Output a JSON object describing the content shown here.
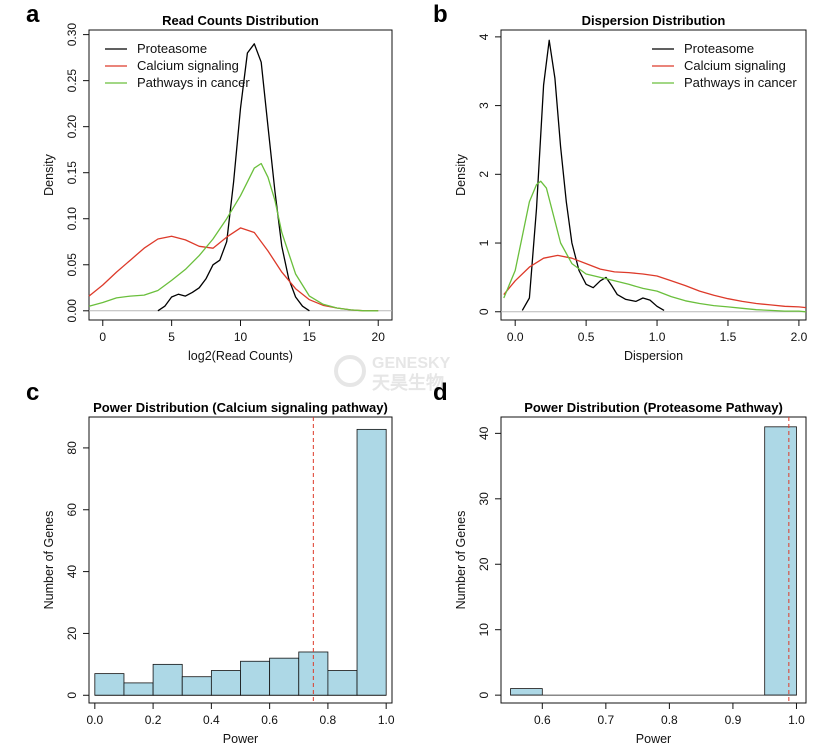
{
  "watermark": {
    "line1": "GENESKY",
    "line2": "天昊生物"
  },
  "chart_data": [
    {
      "panel": "a",
      "type": "line",
      "title": "Read Counts Distribution",
      "xlabel": "log2(Read Counts)",
      "ylabel": "Density",
      "xlim": [
        -1,
        21
      ],
      "ylim": [
        -0.01,
        0.305
      ],
      "xticks": [
        0,
        5,
        10,
        15,
        20
      ],
      "yticks": [
        0.0,
        0.05,
        0.1,
        0.15,
        0.2,
        0.25,
        0.3
      ],
      "ytick_labels": [
        "0.00",
        "0.05",
        "0.10",
        "0.15",
        "0.20",
        "0.25",
        "0.30"
      ],
      "baseline": 0,
      "grid": false,
      "legend": "top-left",
      "series": [
        {
          "name": "Proteasome",
          "color": "#000000",
          "x": [
            4,
            4.5,
            5,
            5.5,
            6,
            6.5,
            7,
            7.5,
            8,
            8.5,
            9,
            9.5,
            10,
            10.5,
            11,
            11.5,
            12,
            12.5,
            13,
            13.5,
            14,
            14.5,
            15
          ],
          "y": [
            0.0,
            0.005,
            0.015,
            0.018,
            0.016,
            0.02,
            0.025,
            0.035,
            0.05,
            0.055,
            0.075,
            0.14,
            0.22,
            0.28,
            0.29,
            0.27,
            0.2,
            0.13,
            0.07,
            0.035,
            0.015,
            0.005,
            0.0
          ]
        },
        {
          "name": "Calcium signaling",
          "color": "#dd3a2a",
          "x": [
            -1,
            0,
            1,
            2,
            3,
            4,
            5,
            6,
            7,
            8,
            9,
            10,
            11,
            12,
            13,
            14,
            15,
            16,
            17,
            18,
            19,
            20
          ],
          "y": [
            0.016,
            0.028,
            0.042,
            0.055,
            0.068,
            0.078,
            0.081,
            0.077,
            0.07,
            0.068,
            0.08,
            0.09,
            0.085,
            0.065,
            0.042,
            0.024,
            0.012,
            0.006,
            0.003,
            0.001,
            0.0,
            0.0
          ]
        },
        {
          "name": "Pathways in cancer",
          "color": "#6abf3c",
          "x": [
            -1,
            0,
            1,
            2,
            3,
            4,
            5,
            6,
            7,
            8,
            9,
            10,
            10.5,
            11,
            11.5,
            12,
            12.5,
            13,
            14,
            15,
            16,
            17,
            18,
            19,
            20
          ],
          "y": [
            0.005,
            0.009,
            0.014,
            0.016,
            0.017,
            0.022,
            0.033,
            0.045,
            0.06,
            0.078,
            0.1,
            0.125,
            0.14,
            0.155,
            0.16,
            0.145,
            0.12,
            0.085,
            0.04,
            0.016,
            0.007,
            0.003,
            0.001,
            0.0,
            0.0
          ]
        }
      ]
    },
    {
      "panel": "b",
      "type": "line",
      "title": "Dispersion Distribution",
      "xlabel": "Dispersion",
      "ylabel": "Density",
      "xlim": [
        -0.1,
        2.05
      ],
      "ylim": [
        -0.12,
        4.1
      ],
      "xticks": [
        0.0,
        0.5,
        1.0,
        1.5,
        2.0
      ],
      "xtick_labels": [
        "0.0",
        "0.5",
        "1.0",
        "1.5",
        "2.0"
      ],
      "yticks": [
        0,
        1,
        2,
        3,
        4
      ],
      "baseline": 0,
      "grid": false,
      "legend": "top-right",
      "series": [
        {
          "name": "Proteasome",
          "color": "#000000",
          "x": [
            0.05,
            0.1,
            0.15,
            0.2,
            0.24,
            0.28,
            0.32,
            0.36,
            0.4,
            0.45,
            0.5,
            0.55,
            0.6,
            0.64,
            0.68,
            0.72,
            0.78,
            0.85,
            0.9,
            0.95,
            1.0,
            1.05
          ],
          "y": [
            0.02,
            0.2,
            1.5,
            3.3,
            3.95,
            3.4,
            2.4,
            1.6,
            1.0,
            0.6,
            0.4,
            0.35,
            0.45,
            0.5,
            0.38,
            0.25,
            0.18,
            0.15,
            0.2,
            0.17,
            0.08,
            0.02
          ]
        },
        {
          "name": "Calcium signaling",
          "color": "#dd3a2a",
          "x": [
            -0.08,
            0.0,
            0.1,
            0.2,
            0.3,
            0.4,
            0.5,
            0.6,
            0.7,
            0.8,
            0.9,
            1.0,
            1.1,
            1.2,
            1.3,
            1.4,
            1.5,
            1.6,
            1.7,
            1.8,
            1.9,
            2.0,
            2.05
          ],
          "y": [
            0.25,
            0.45,
            0.65,
            0.78,
            0.82,
            0.78,
            0.7,
            0.62,
            0.58,
            0.57,
            0.55,
            0.52,
            0.45,
            0.38,
            0.3,
            0.24,
            0.19,
            0.15,
            0.12,
            0.1,
            0.08,
            0.07,
            0.06
          ]
        },
        {
          "name": "Pathways in cancer",
          "color": "#6abf3c",
          "x": [
            -0.08,
            0.0,
            0.05,
            0.1,
            0.15,
            0.18,
            0.22,
            0.27,
            0.32,
            0.4,
            0.5,
            0.6,
            0.7,
            0.8,
            0.9,
            1.0,
            1.1,
            1.2,
            1.3,
            1.4,
            1.5,
            1.6,
            1.7,
            1.8,
            1.9,
            2.0,
            2.05
          ],
          "y": [
            0.2,
            0.6,
            1.1,
            1.6,
            1.85,
            1.9,
            1.8,
            1.4,
            1.0,
            0.7,
            0.55,
            0.5,
            0.45,
            0.4,
            0.34,
            0.3,
            0.22,
            0.16,
            0.12,
            0.09,
            0.07,
            0.05,
            0.03,
            0.02,
            0.01,
            0.01,
            0.0
          ]
        }
      ]
    },
    {
      "panel": "c",
      "type": "bar",
      "subtype": "histogram",
      "title": "Power Distribution (Calcium signaling pathway)",
      "xlabel": "Power",
      "ylabel": "Number of Genes",
      "xlim": [
        -0.02,
        1.02
      ],
      "ylim": [
        -2.5,
        90
      ],
      "xticks": [
        0.0,
        0.2,
        0.4,
        0.6,
        0.8,
        1.0
      ],
      "xtick_labels": [
        "0.0",
        "0.2",
        "0.4",
        "0.6",
        "0.8",
        "1.0"
      ],
      "yticks": [
        0,
        20,
        40,
        60,
        80
      ],
      "bin_edges": [
        0.0,
        0.1,
        0.2,
        0.3,
        0.4,
        0.5,
        0.6,
        0.7,
        0.8,
        0.9,
        1.0
      ],
      "values": [
        7,
        4,
        10,
        6,
        8,
        11,
        12,
        14,
        8,
        86
      ],
      "fill": "#add8e6",
      "vline": {
        "x": 0.75,
        "color": "#dd3a2a",
        "style": "dashed"
      }
    },
    {
      "panel": "d",
      "type": "bar",
      "subtype": "histogram",
      "title": "Power Distribution (Proteasome Pathway)",
      "xlabel": "Power",
      "ylabel": "Number of Genes",
      "xlim": [
        0.535,
        1.015
      ],
      "ylim": [
        -1.2,
        42.5
      ],
      "xticks": [
        0.6,
        0.7,
        0.8,
        0.9,
        1.0
      ],
      "xtick_labels": [
        "0.6",
        "0.7",
        "0.8",
        "0.9",
        "1.0"
      ],
      "yticks": [
        0,
        10,
        20,
        30,
        40
      ],
      "bin_edges": [
        0.55,
        0.6,
        0.65,
        0.7,
        0.75,
        0.8,
        0.85,
        0.9,
        0.95,
        1.0
      ],
      "values": [
        1,
        0,
        0,
        0,
        0,
        0,
        0,
        0,
        41
      ],
      "fill": "#add8e6",
      "vline": {
        "x": 0.988,
        "color": "#dd3a2a",
        "style": "dashed"
      }
    }
  ]
}
